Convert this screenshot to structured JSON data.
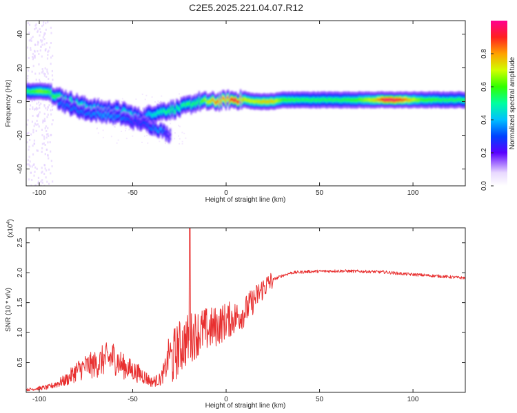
{
  "title": "C2E5.2025.221.04.07.R12",
  "chart_data": [
    {
      "type": "heatmap",
      "xlabel": "Height of straight line (km)",
      "ylabel": "Frequency (Hz)",
      "xlim": [
        -107,
        128
      ],
      "ylim": [
        -50,
        48
      ],
      "xticks": [
        -100,
        -50,
        0,
        50,
        100
      ],
      "yticks": [
        -40,
        -20,
        0,
        20,
        40
      ],
      "ridge": [
        {
          "x": -105,
          "y": 6,
          "a": 0.55
        },
        {
          "x": -100,
          "y": 6,
          "a": 0.65
        },
        {
          "x": -95,
          "y": 6,
          "a": 0.6
        },
        {
          "x": -90,
          "y": 3,
          "a": 0.55
        },
        {
          "x": -85,
          "y": 1,
          "a": 0.5
        },
        {
          "x": -80,
          "y": -1,
          "a": 0.5
        },
        {
          "x": -75,
          "y": -3,
          "a": 0.45
        },
        {
          "x": -70,
          "y": -4,
          "a": 0.45
        },
        {
          "x": -65,
          "y": -5,
          "a": 0.45
        },
        {
          "x": -60,
          "y": -5,
          "a": 0.4
        },
        {
          "x": -55,
          "y": -6,
          "a": 0.45
        },
        {
          "x": -50,
          "y": -8,
          "a": 0.45
        },
        {
          "x": -45,
          "y": -10,
          "a": 0.35
        },
        {
          "x": -40,
          "y": -7,
          "a": 0.45
        },
        {
          "x": -35,
          "y": -6,
          "a": 0.5
        },
        {
          "x": -30,
          "y": -5,
          "a": 0.55
        },
        {
          "x": -25,
          "y": -4,
          "a": 0.5
        },
        {
          "x": -20,
          "y": -2,
          "a": 0.55
        },
        {
          "x": -15,
          "y": 0,
          "a": 0.55
        },
        {
          "x": -10,
          "y": 0,
          "a": 0.7
        },
        {
          "x": -5,
          "y": 0,
          "a": 0.85
        },
        {
          "x": 0,
          "y": 1,
          "a": 0.8
        },
        {
          "x": 5,
          "y": 1,
          "a": 0.95
        },
        {
          "x": 10,
          "y": 1,
          "a": 0.7
        },
        {
          "x": 15,
          "y": 0,
          "a": 0.7
        },
        {
          "x": 20,
          "y": 0,
          "a": 0.75
        },
        {
          "x": 25,
          "y": 0,
          "a": 0.75
        },
        {
          "x": 30,
          "y": 1,
          "a": 0.6
        },
        {
          "x": 40,
          "y": 1,
          "a": 0.55
        },
        {
          "x": 50,
          "y": 1,
          "a": 0.55
        },
        {
          "x": 60,
          "y": 1,
          "a": 0.55
        },
        {
          "x": 70,
          "y": 1,
          "a": 0.6
        },
        {
          "x": 80,
          "y": 1,
          "a": 0.75
        },
        {
          "x": 85,
          "y": 1,
          "a": 0.95
        },
        {
          "x": 90,
          "y": 1,
          "a": 0.95
        },
        {
          "x": 95,
          "y": 1,
          "a": 0.85
        },
        {
          "x": 100,
          "y": 1,
          "a": 0.7
        },
        {
          "x": 105,
          "y": 1,
          "a": 0.6
        },
        {
          "x": 110,
          "y": 1,
          "a": 0.6
        },
        {
          "x": 115,
          "y": 1,
          "a": 0.55
        },
        {
          "x": 120,
          "y": 1,
          "a": 0.55
        },
        {
          "x": 128,
          "y": 1,
          "a": 0.55
        }
      ],
      "secondary_ridge": [
        {
          "x": -90,
          "y": 0,
          "a": 0.35
        },
        {
          "x": -85,
          "y": -3,
          "a": 0.35
        },
        {
          "x": -75,
          "y": -7,
          "a": 0.35
        },
        {
          "x": -65,
          "y": -8,
          "a": 0.4
        },
        {
          "x": -55,
          "y": -10,
          "a": 0.35
        },
        {
          "x": -50,
          "y": -12,
          "a": 0.3
        },
        {
          "x": -45,
          "y": -13,
          "a": 0.3
        },
        {
          "x": -35,
          "y": -17,
          "a": 0.4
        },
        {
          "x": -30,
          "y": -20,
          "a": 0.2
        }
      ],
      "colorbar": {
        "label": "Normalized spectral amplitude",
        "ticks": [
          "0.0",
          "0.2",
          "0.4",
          "0.6",
          "0.8"
        ],
        "tick_values": [
          0,
          0.2,
          0.4,
          0.6,
          0.8
        ],
        "range": [
          0,
          1
        ]
      }
    },
    {
      "type": "line",
      "xlabel": "Height of straight line (km)",
      "ylabel": "SNR (10 * v/v)",
      "y_multiplier_label": "(x10",
      "y_multiplier_exp": "4",
      "y_multiplier_close": ")",
      "xlim": [
        -107,
        128
      ],
      "ylim": [
        0,
        2.75
      ],
      "xticks": [
        -100,
        -50,
        0,
        50,
        100
      ],
      "yticks": [
        "0.5",
        "1.0",
        "1.5",
        "2.0",
        "2.5"
      ],
      "ytick_values": [
        0.5,
        1.0,
        1.5,
        2.0,
        2.5
      ],
      "color": "#e83030",
      "envelope": [
        {
          "x": -107,
          "y": 0.03
        },
        {
          "x": -95,
          "y": 0.06
        },
        {
          "x": -85,
          "y": 0.15
        },
        {
          "x": -80,
          "y": 0.25
        },
        {
          "x": -75,
          "y": 0.3
        },
        {
          "x": -70,
          "y": 0.32
        },
        {
          "x": -65,
          "y": 0.38
        },
        {
          "x": -60,
          "y": 0.4
        },
        {
          "x": -55,
          "y": 0.3
        },
        {
          "x": -50,
          "y": 0.25
        },
        {
          "x": -45,
          "y": 0.2
        },
        {
          "x": -40,
          "y": 0.12
        },
        {
          "x": -35,
          "y": 0.15
        },
        {
          "x": -32,
          "y": 0.3
        },
        {
          "x": -30,
          "y": 0.5
        },
        {
          "x": -25,
          "y": 0.75
        },
        {
          "x": -20,
          "y": 0.9
        },
        {
          "x": -15,
          "y": 1.0
        },
        {
          "x": -10,
          "y": 1.05
        },
        {
          "x": -5,
          "y": 1.1
        },
        {
          "x": 0,
          "y": 1.2
        },
        {
          "x": 5,
          "y": 1.25
        },
        {
          "x": 10,
          "y": 1.35
        },
        {
          "x": 15,
          "y": 1.55
        },
        {
          "x": 20,
          "y": 1.75
        },
        {
          "x": 25,
          "y": 1.88
        },
        {
          "x": 30,
          "y": 1.95
        },
        {
          "x": 35,
          "y": 2.0
        },
        {
          "x": 45,
          "y": 2.02
        },
        {
          "x": 60,
          "y": 2.03
        },
        {
          "x": 75,
          "y": 2.02
        },
        {
          "x": 85,
          "y": 2.01
        },
        {
          "x": 95,
          "y": 1.98
        },
        {
          "x": 105,
          "y": 1.96
        },
        {
          "x": 115,
          "y": 1.94
        },
        {
          "x": 128,
          "y": 1.91
        }
      ],
      "spike": {
        "x": -19.5,
        "y": 2.75
      }
    }
  ]
}
